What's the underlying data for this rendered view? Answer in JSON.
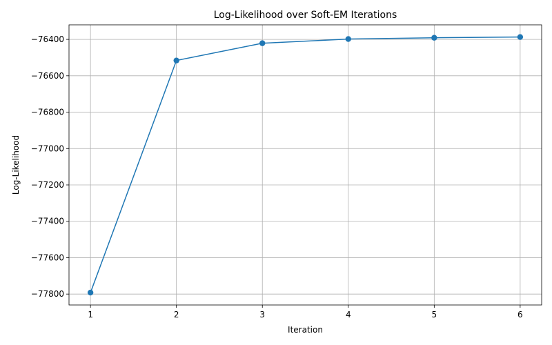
{
  "chart_data": {
    "type": "line",
    "title": "Log-Likelihood over Soft-EM Iterations",
    "xlabel": "Iteration",
    "ylabel": "Log-Likelihood",
    "x": [
      1,
      2,
      3,
      4,
      5,
      6
    ],
    "xticks": [
      1,
      2,
      3,
      4,
      5,
      6
    ],
    "yticks": [
      -77800,
      -77600,
      -77400,
      -77200,
      -77000,
      -76800,
      -76600,
      -76400
    ],
    "xlim": [
      0.75,
      6.25
    ],
    "ylim": [
      -77860,
      -76320
    ],
    "grid": true,
    "legend": "none",
    "series": [
      {
        "values": [
          -77792,
          -76516,
          -76421,
          -76398,
          -76391,
          -76387
        ],
        "color": "#1f77b4",
        "marker": "circle"
      }
    ]
  }
}
